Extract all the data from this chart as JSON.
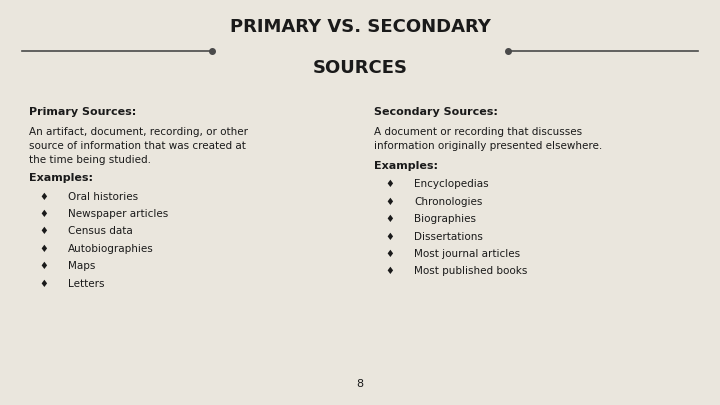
{
  "background_color": "#eae6dd",
  "title_line1": "PRIMARY VS. SECONDARY",
  "title_line2": "SOURCES",
  "title_fontsize": 13,
  "title_color": "#1a1a1a",
  "title_font_weight": "bold",
  "line_color": "#4a4a4a",
  "dot_color": "#4a4a4a",
  "left_heading": "Primary Sources:",
  "left_body": "An artifact, document, recording, or other\nsource of information that was created at\nthe time being studied.",
  "left_examples_label": "Examples:",
  "left_examples": [
    "Oral histories",
    "Newspaper articles",
    "Census data",
    "Autobiographies",
    "Maps",
    "Letters"
  ],
  "right_heading": "Secondary Sources:",
  "right_body": "A document or recording that discusses\ninformation originally presented elsewhere.",
  "right_examples_label": "Examples:",
  "right_examples": [
    "Encyclopedias",
    "Chronologies",
    "Biographies",
    "Dissertations",
    "Most journal articles",
    "Most published books"
  ],
  "bullet_char": "♦",
  "heading_fontsize": 8,
  "body_fontsize": 7.5,
  "page_number": "8",
  "text_color": "#1a1a1a"
}
